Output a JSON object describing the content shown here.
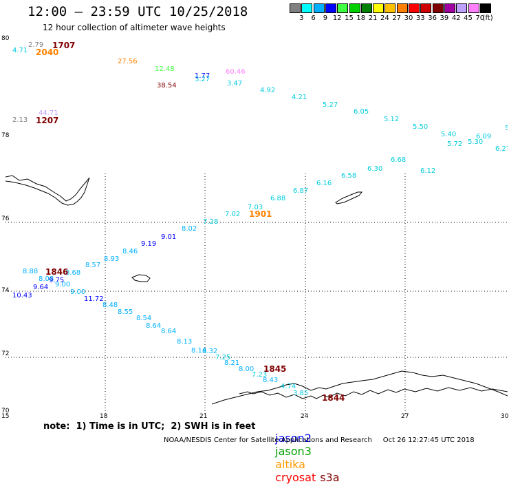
{
  "title": "12:00 – 23:59 UTC 10/25/2018",
  "subtitle": "12 hour collection of altimeter wave heights",
  "colorbar": {
    "unit_label": "(ft)",
    "labels": [
      "3",
      "6",
      "9",
      "12",
      "15",
      "18",
      "21",
      "24",
      "27",
      "30",
      "33",
      "36",
      "39",
      "42",
      "45",
      "70"
    ],
    "colors": [
      "#808080",
      "#00ffff",
      "#00b0ff",
      "#0000ff",
      "#40ff40",
      "#00d000",
      "#008000",
      "#ffff00",
      "#ffc000",
      "#ff8000",
      "#ff0000",
      "#d00000",
      "#800000",
      "#a000a0",
      "#c0a0ff",
      "#ff80ff",
      "#000000"
    ]
  },
  "map": {
    "lat_labels": [
      "80",
      "78",
      "76",
      "74",
      "72",
      "70"
    ],
    "lon_labels": [
      "15",
      "18",
      "21",
      "24",
      "27",
      "30"
    ],
    "lon_range": [
      15,
      30
    ],
    "lat_range": [
      70,
      80
    ],
    "grid": "dotted"
  },
  "time_labels": [
    {
      "text": "1707",
      "color": "#800000"
    },
    {
      "text": "2040",
      "color": "#ff8000"
    },
    {
      "text": "1207",
      "color": "#800000"
    },
    {
      "text": "1901",
      "color": "#ff8000"
    },
    {
      "text": "1846",
      "color": "#800000"
    },
    {
      "text": "1845",
      "color": "#800000"
    },
    {
      "text": "1844",
      "color": "#800000"
    }
  ],
  "observations": [
    {
      "text": "2.79",
      "color": "#808080"
    },
    {
      "text": "4.71",
      "color": "#00ccdd"
    },
    {
      "text": "27.56",
      "color": "#ff8000"
    },
    {
      "text": "12.48",
      "color": "#40ff40"
    },
    {
      "text": "1.77",
      "color": "#0000ff"
    },
    {
      "text": "3.27",
      "color": "#00ccdd"
    },
    {
      "text": "60.46",
      "color": "#ff80ff"
    },
    {
      "text": "38.54",
      "color": "#800000"
    },
    {
      "text": "3.47",
      "color": "#00ccdd"
    },
    {
      "text": "4.92",
      "color": "#00ccdd"
    },
    {
      "text": "4.21",
      "color": "#00ccdd"
    },
    {
      "text": "5.27",
      "color": "#00ccdd"
    },
    {
      "text": "6.05",
      "color": "#00ccdd"
    },
    {
      "text": "5.12",
      "color": "#00ccdd"
    },
    {
      "text": "5.50",
      "color": "#00ccdd"
    },
    {
      "text": "5.40",
      "color": "#00ccdd"
    },
    {
      "text": "6.09",
      "color": "#00ccdd"
    },
    {
      "text": "5.72",
      "color": "#00ccdd"
    },
    {
      "text": "5.30",
      "color": "#00ccdd"
    },
    {
      "text": "6.27",
      "color": "#00ccdd"
    },
    {
      "text": "5",
      "color": "#00ccdd"
    },
    {
      "text": "6.12",
      "color": "#00ccdd"
    },
    {
      "text": "6.68",
      "color": "#00ccdd"
    },
    {
      "text": "6.30",
      "color": "#00ccdd"
    },
    {
      "text": "6.58",
      "color": "#00ccdd"
    },
    {
      "text": "6.16",
      "color": "#00ccdd"
    },
    {
      "text": "6.87",
      "color": "#00ccdd"
    },
    {
      "text": "6.88",
      "color": "#00ccdd"
    },
    {
      "text": "7.03",
      "color": "#00ccdd"
    },
    {
      "text": "7.02",
      "color": "#00ccdd"
    },
    {
      "text": "7.28",
      "color": "#00ccdd"
    },
    {
      "text": "2.13",
      "color": "#808080"
    },
    {
      "text": "44.71",
      "color": "#c0a0ff"
    },
    {
      "text": "8.02",
      "color": "#00b0ff"
    },
    {
      "text": "9.01",
      "color": "#0000ff"
    },
    {
      "text": "9.19",
      "color": "#0000ff"
    },
    {
      "text": "8.46",
      "color": "#00b0ff"
    },
    {
      "text": "8.93",
      "color": "#00b0ff"
    },
    {
      "text": "8.57",
      "color": "#00b0ff"
    },
    {
      "text": "8.88",
      "color": "#00b0ff"
    },
    {
      "text": "8.68",
      "color": "#00b0ff"
    },
    {
      "text": "8.08",
      "color": "#00b0ff"
    },
    {
      "text": "9.75",
      "color": "#0000ff"
    },
    {
      "text": "9.64",
      "color": "#0000ff"
    },
    {
      "text": "9.00",
      "color": "#00b0ff"
    },
    {
      "text": "10.43",
      "color": "#0000ff"
    },
    {
      "text": "9.00",
      "color": "#00b0ff"
    },
    {
      "text": "11.72",
      "color": "#0000ff"
    },
    {
      "text": "8.48",
      "color": "#00b0ff"
    },
    {
      "text": "8.55",
      "color": "#00b0ff"
    },
    {
      "text": "8.54",
      "color": "#00b0ff"
    },
    {
      "text": "8.64",
      "color": "#00b0ff"
    },
    {
      "text": "8.64",
      "color": "#00b0ff"
    },
    {
      "text": "8.13",
      "color": "#00b0ff"
    },
    {
      "text": "8.14",
      "color": "#00b0ff"
    },
    {
      "text": "8.32",
      "color": "#00b0ff"
    },
    {
      "text": "7.25",
      "color": "#00ccdd"
    },
    {
      "text": "8.21",
      "color": "#00b0ff"
    },
    {
      "text": "8.00",
      "color": "#00b0ff"
    },
    {
      "text": "7.23",
      "color": "#00ccdd"
    },
    {
      "text": "8.43",
      "color": "#00b0ff"
    },
    {
      "text": "4.74",
      "color": "#00ccdd"
    },
    {
      "text": "3.85",
      "color": "#00ccdd"
    }
  ],
  "footer": {
    "note": "note:  1) Time is in UTC;  2) SWH is in feet",
    "legend": [
      {
        "name": "jason2",
        "color": "#0000ff"
      },
      {
        "name": "jason3",
        "color": "#00a000"
      },
      {
        "name": "altika",
        "color": "#ff9900"
      },
      {
        "name": "cryosat",
        "color": "#ff0000"
      },
      {
        "name": "s3a",
        "color": "#800000"
      }
    ],
    "credits": "NOAA/NESDIS Center for Satellite Applications and Research     Oct 26 12:27:45 UTC 2018"
  }
}
